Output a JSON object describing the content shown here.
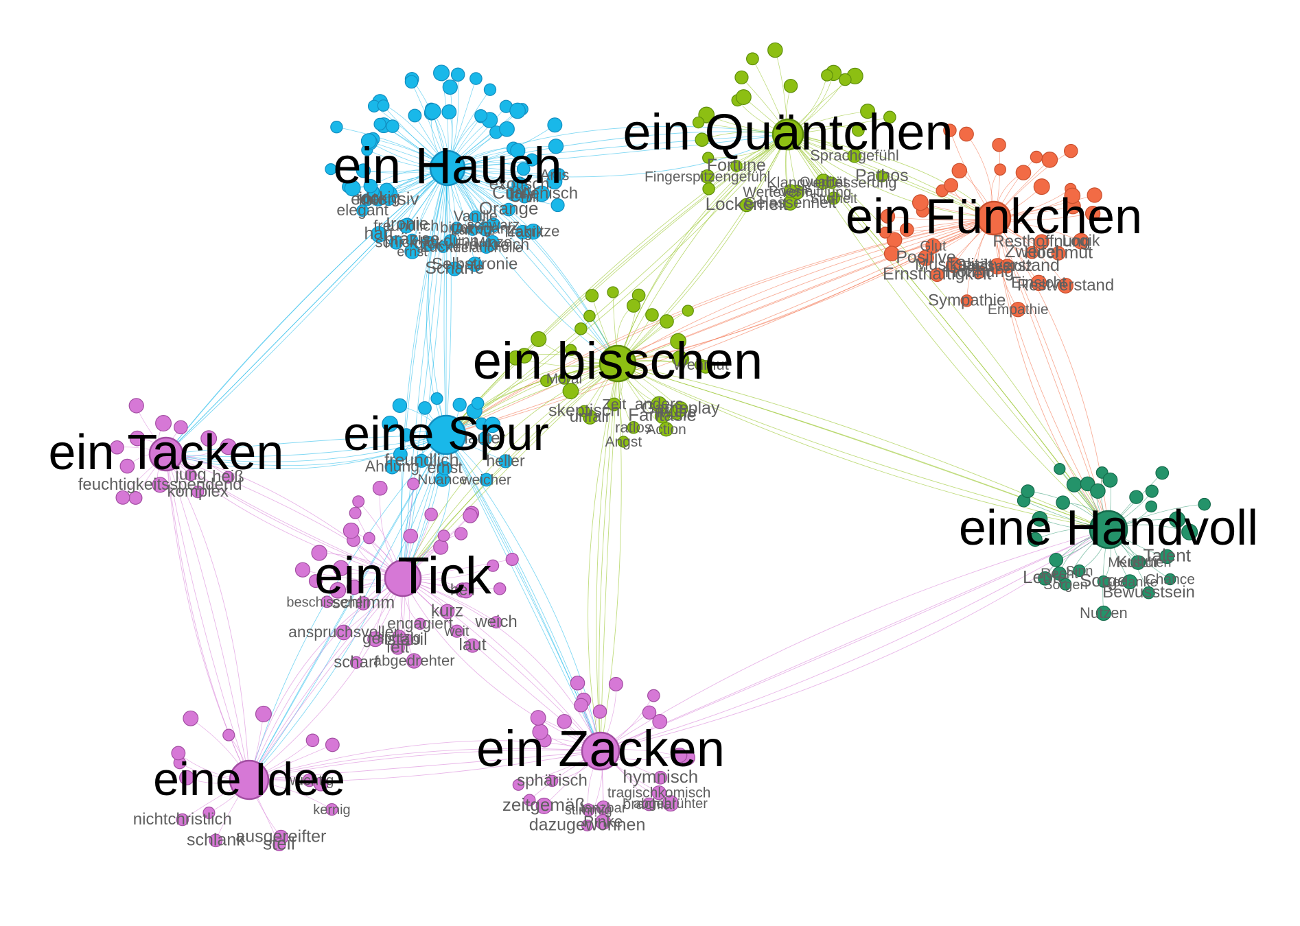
{
  "graph": {
    "clusters": [
      {
        "id": "hauch",
        "label": "ein Hauch",
        "color": "#19b8e9",
        "stroke": "#138ec0",
        "words": [
          "Anis",
          "exotisch",
          "italienisch",
          "Chili",
          "Tragik",
          "Curry",
          "Lakritze",
          "Orange",
          "Minze",
          "schwarz",
          "Frankreich",
          "Vanille",
          "Melancholie",
          "Schärfe",
          "Arroganz",
          "Selbstironie",
          "Lakritz",
          "Zucker",
          "bitter",
          "zu dünn",
          "schick",
          "Ironie",
          "dick",
          "ernst",
          "freundlich",
          "präzise",
          "hart",
          "rockig",
          "edel",
          "elegant",
          "intensiv"
        ]
      },
      {
        "id": "quaentchen",
        "label": "ein Quäntchen",
        "color": "#8dbf13",
        "stroke": "#5f8f0b",
        "words": [
          "Sprachgefühl",
          "Pathos",
          "Qualität",
          "Klangverbesserung",
          "Sturheit",
          "Gelassenheit",
          "Wertevermittlung",
          "Poesie",
          "Lockerheit",
          "Fortune",
          "Fingerspitzengefühl"
        ]
      },
      {
        "id": "funkchen",
        "label": "ein Fünkchen",
        "color": "#f26b45",
        "stroke": "#c9502e",
        "words": [
          "Hochmut",
          "Logik",
          "Zweifel",
          "Resthoffnung",
          "Restverstand",
          "Empathie",
          "Einsicht",
          "Sachverstand",
          "Sympathie",
          "Rassestolz",
          "Hoffnung",
          "Ernsthaftigkeit",
          "Positive",
          "Musikalität",
          "Glut"
        ]
      },
      {
        "id": "bisschen",
        "label": "ein bisschen",
        "color": "#8dbf13",
        "stroke": "#5f8f0b",
        "words": [
          "Wehmut",
          "Mühe",
          "Fantasie",
          "Gameplay",
          "anders",
          "Action",
          "ratlos",
          "Angst",
          "Zeit",
          "unfair",
          "skeptisch",
          "Moral"
        ]
      },
      {
        "id": "spur",
        "label": "eine Spur",
        "color": "#19b8e9",
        "stroke": "#138ec0",
        "words": [
          "lauter",
          "heller",
          "weicher",
          "Nuance",
          "ernst",
          "freundlich",
          "Ahnung"
        ]
      },
      {
        "id": "tacken",
        "label": "ein Tacken",
        "color": "#d678d6",
        "stroke": "#a24ea2",
        "words": [
          "heiß",
          "jung",
          "komplex",
          "feuchtigkeitsspendend"
        ]
      },
      {
        "id": "tick",
        "label": "ein Tick",
        "color": "#d678d6",
        "stroke": "#a24ea2",
        "words": [
          "hell",
          "weich",
          "laut",
          "weit",
          "kurz",
          "engagiert",
          "abgedrehter",
          "stabil",
          "spritzig",
          "scharf",
          "fett",
          "geil",
          "schlimm",
          "anspruchsvoller",
          "beschissener"
        ]
      },
      {
        "id": "handvoll",
        "label": "eine Handvoll",
        "color": "#24936a",
        "stroke": "#166b4c",
        "words": [
          "Talent",
          "Chance",
          "Menschen",
          "Bewusstsein",
          "Kultur",
          "Gedanke",
          "Nutzen",
          "Sorge",
          "Sorgen",
          "Sinn",
          "Recht",
          "Leute"
        ]
      },
      {
        "id": "idee",
        "label": "eine Idee",
        "color": "#d678d6",
        "stroke": "#a24ea2",
        "words": [
          "wuchtig",
          "kernig",
          "ausgereifter",
          "steif",
          "schlank",
          "nichtchristlich"
        ]
      },
      {
        "id": "zacken",
        "label": "ein Zacken",
        "color": "#d678d6",
        "stroke": "#a24ea2",
        "words": [
          "hymnisch",
          "tragischkomisch",
          "brachial",
          "abgebrühter",
          "Pinke",
          "stimmig",
          "tanzbar",
          "dazugewonnen",
          "sphärisch",
          "zeitgemäß"
        ]
      }
    ]
  }
}
